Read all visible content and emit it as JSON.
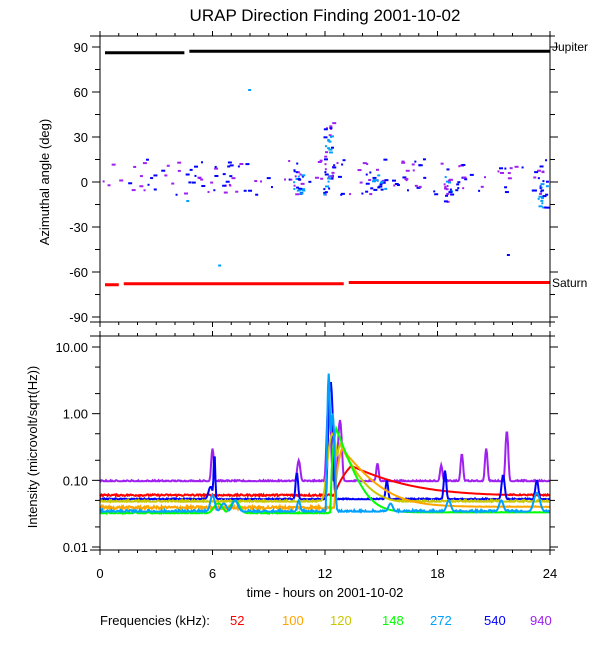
{
  "title": "URAP Direction Finding  2001-10-02",
  "colors": {
    "axis": "#000000",
    "jupiter": "#000000",
    "saturn": "#ff0000",
    "f52": "#ff0000",
    "f100": "#ffa500",
    "f120": "#c8c800",
    "f148": "#00ff00",
    "f272": "#00a0ff",
    "f540": "#0000ff",
    "f940": "#a020f0"
  },
  "legend": {
    "label": "Frequencies (kHz):",
    "items": [
      {
        "text": "52",
        "color_key": "f52"
      },
      {
        "text": "100",
        "color_key": "f100"
      },
      {
        "text": "120",
        "color_key": "f120"
      },
      {
        "text": "148",
        "color_key": "f148"
      },
      {
        "text": "272",
        "color_key": "f272"
      },
      {
        "text": "540",
        "color_key": "f540"
      },
      {
        "text": "940",
        "color_key": "f940"
      }
    ]
  },
  "chart_data": [
    {
      "type": "scatter",
      "title": "URAP Direction Finding  2001-10-02",
      "ylabel": "Azimuthal angle (deg)",
      "xlim": [
        0,
        24
      ],
      "ylim": [
        -90,
        90
      ],
      "yticks": [
        {
          "value": 90,
          "label": "90"
        },
        {
          "value": 60,
          "label": "60"
        },
        {
          "value": 30,
          "label": "30"
        },
        {
          "value": 0,
          "label": "0"
        },
        {
          "value": -30,
          "label": "-30"
        },
        {
          "value": -60,
          "label": "-60"
        },
        {
          "value": -90,
          "label": "-90"
        }
      ],
      "y_minor_step": 15,
      "reference_lines": [
        {
          "name": "Jupiter",
          "label": "Jupiter",
          "color_key": "jupiter",
          "segments": [
            [
              0,
              4.5,
              86.2
            ],
            [
              4.5,
              24,
              87.2
            ]
          ]
        },
        {
          "name": "Saturn",
          "label": "Saturn",
          "color_key": "saturn",
          "segments": [
            [
              0,
              1,
              -68.5
            ],
            [
              1,
              13,
              -67.8
            ],
            [
              13,
              24,
              -67.0
            ]
          ]
        }
      ],
      "clusters": [
        {
          "x": [
            0,
            24
          ],
          "y": [
            -8,
            16
          ],
          "n": 170,
          "colors": [
            "f940",
            "f540"
          ]
        },
        {
          "x": [
            10.3,
            10.8
          ],
          "y": [
            -8,
            10
          ],
          "n": 22,
          "colors": [
            "f540",
            "f272",
            "f940"
          ]
        },
        {
          "x": [
            11.9,
            12.4
          ],
          "y": [
            -10,
            42
          ],
          "n": 40,
          "colors": [
            "f540",
            "f940",
            "f272"
          ]
        },
        {
          "x": [
            14.5,
            15.2
          ],
          "y": [
            -5,
            6
          ],
          "n": 15,
          "colors": [
            "f540",
            "f272"
          ]
        },
        {
          "x": [
            18.3,
            18.7
          ],
          "y": [
            -14,
            5
          ],
          "n": 14,
          "colors": [
            "f540",
            "f272",
            "f940"
          ]
        },
        {
          "x": [
            23.3,
            23.8
          ],
          "y": [
            -18,
            2
          ],
          "n": 20,
          "colors": [
            "f272",
            "f540"
          ]
        }
      ],
      "outliers": [
        {
          "x": 4.6,
          "y": -12,
          "color_key": "f272"
        },
        {
          "x": 6.3,
          "y": -55,
          "color_key": "f272"
        },
        {
          "x": 7.9,
          "y": 62,
          "color_key": "f272"
        },
        {
          "x": 21.7,
          "y": -48,
          "color_key": "f540"
        }
      ]
    },
    {
      "type": "line",
      "ylabel": "Intensity (microvolt/sqrt(Hz))",
      "xlabel": "time - hours on 2001-10-02",
      "xlim": [
        0,
        24
      ],
      "ylim": [
        0.01,
        10
      ],
      "yscale": "log",
      "xticks": [
        {
          "value": 0,
          "label": "0"
        },
        {
          "value": 6,
          "label": "6"
        },
        {
          "value": 12,
          "label": "12"
        },
        {
          "value": 18,
          "label": "18"
        },
        {
          "value": 24,
          "label": "24"
        }
      ],
      "x_minor_step": 1,
      "yticks": [
        {
          "value": 10,
          "label": "10.00"
        },
        {
          "value": 1,
          "label": "1.00"
        },
        {
          "value": 0.1,
          "label": "0.10"
        },
        {
          "value": 0.01,
          "label": "0.01"
        }
      ],
      "series": [
        {
          "name": "940 kHz",
          "color_key": "f940",
          "base": 0.097,
          "noise": 0.04,
          "events": [
            [
              6.0,
              0.3,
              0.08
            ],
            [
              10.6,
              0.2,
              0.1
            ],
            [
              12.2,
              1.5,
              0.1
            ],
            [
              12.8,
              0.8,
              0.1
            ],
            [
              14.8,
              0.18,
              0.08
            ],
            [
              18.2,
              0.17,
              0.08
            ],
            [
              19.3,
              0.25,
              0.08
            ],
            [
              20.6,
              0.3,
              0.08
            ],
            [
              21.7,
              0.55,
              0.08
            ]
          ],
          "tail": null
        },
        {
          "name": "52 kHz",
          "color_key": "f52",
          "base": 0.06,
          "noise": 0.03,
          "events": [],
          "tail": {
            "start": 12.5,
            "peak_t": 13.4,
            "peak_v": 0.165,
            "decay": 2.2,
            "floor_after": 0.058
          }
        },
        {
          "name": "540 kHz",
          "color_key": "f540",
          "base": 0.052,
          "noise": 0.03,
          "events": [
            [
              5.9,
              0.08,
              0.15
            ],
            [
              6.1,
              0.25,
              0.05
            ],
            [
              10.5,
              0.13,
              0.08
            ],
            [
              12.3,
              3.0,
              0.1
            ],
            [
              15.3,
              0.1,
              0.08
            ],
            [
              18.4,
              0.14,
              0.08
            ],
            [
              21.5,
              0.12,
              0.1
            ],
            [
              23.3,
              0.1,
              0.1
            ]
          ],
          "tail": null
        },
        {
          "name": "120 kHz",
          "color_key": "f120",
          "base": 0.048,
          "noise": 0.05,
          "events": [
            [
              12.4,
              0.5,
              0.25
            ]
          ],
          "tail": {
            "start": 12.4,
            "peak_t": 12.8,
            "peak_v": 0.35,
            "decay": 0.7,
            "floor_after": 0.045
          }
        },
        {
          "name": "100 kHz",
          "color_key": "f100",
          "base": 0.039,
          "noise": 0.05,
          "events": [],
          "tail": {
            "start": 12.5,
            "peak_t": 12.9,
            "peak_v": 0.3,
            "decay": 1.1,
            "floor_after": 0.04
          }
        },
        {
          "name": "148 kHz",
          "color_key": "f148",
          "base": 0.032,
          "noise": 0.05,
          "events": [
            [
              6.3,
              0.045,
              0.3
            ],
            [
              7.2,
              0.05,
              0.3
            ]
          ],
          "tail": {
            "start": 12.3,
            "peak_t": 12.6,
            "peak_v": 0.6,
            "decay": 0.55,
            "floor_after": 0.033
          }
        },
        {
          "name": "272 kHz",
          "color_key": "f272",
          "base": 0.034,
          "noise": 0.06,
          "events": [
            [
              6.0,
              0.06,
              0.15
            ],
            [
              6.6,
              0.045,
              0.2
            ],
            [
              7.2,
              0.05,
              0.2
            ],
            [
              10.6,
              0.05,
              0.1
            ],
            [
              12.2,
              4.0,
              0.06
            ],
            [
              12.4,
              1.0,
              0.1
            ],
            [
              15.5,
              0.045,
              0.15
            ],
            [
              18.6,
              0.05,
              0.15
            ],
            [
              21.4,
              0.05,
              0.15
            ],
            [
              23.3,
              0.065,
              0.2
            ]
          ],
          "tail": null
        }
      ]
    }
  ]
}
